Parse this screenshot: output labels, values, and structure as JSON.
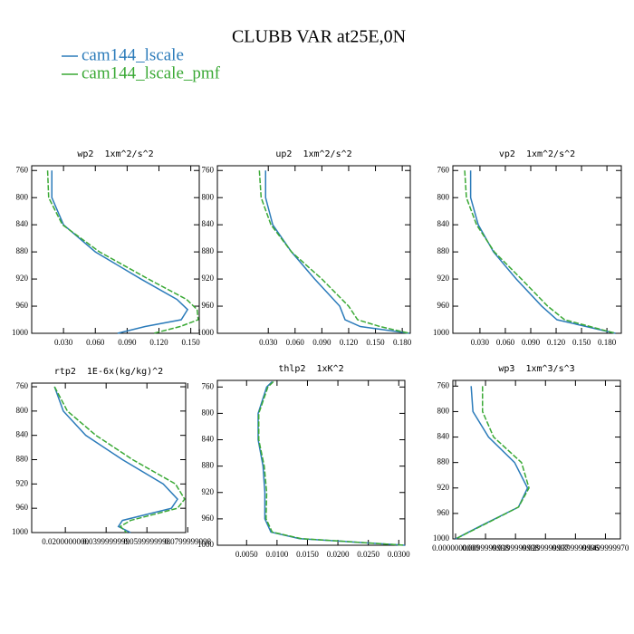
{
  "title": "CLUBB VAR at25E,0N",
  "chart_data": [
    {
      "type": "line",
      "title": "wp2  1xm^2/s^2",
      "y": [
        760,
        800,
        840,
        880,
        920,
        950,
        965,
        980,
        990,
        1000
      ],
      "series": [
        {
          "name": "cam144_lscale",
          "color": "#2b7bba",
          "values": [
            0.019,
            0.019,
            0.03,
            0.06,
            0.103,
            0.137,
            0.147,
            0.141,
            0.107,
            0.081
          ]
        },
        {
          "name": "cam144_lscale_pmf",
          "color": "#3aa935",
          "values": [
            0.015,
            0.016,
            0.029,
            0.064,
            0.11,
            0.146,
            0.156,
            0.157,
            0.14,
            0.115
          ]
        }
      ],
      "xlim": [
        0,
        0.158
      ],
      "xticks": [
        {
          "value": 0.03,
          "label": "0.030"
        },
        {
          "value": 0.06,
          "label": "0.060"
        },
        {
          "value": 0.09,
          "label": "0.090"
        },
        {
          "value": 0.12,
          "label": "0.120"
        },
        {
          "value": 0.15,
          "label": "0.150"
        }
      ],
      "ylim": [
        1000,
        753
      ],
      "yticks": [
        760,
        800,
        840,
        880,
        920,
        960,
        1000
      ]
    },
    {
      "type": "line",
      "title": "up2  1xm^2/s^2",
      "y": [
        760,
        800,
        840,
        880,
        920,
        960,
        980,
        990,
        1000
      ],
      "series": [
        {
          "name": "cam144_lscale",
          "color": "#2b7bba",
          "values": [
            0.027,
            0.027,
            0.035,
            0.056,
            0.082,
            0.11,
            0.116,
            0.133,
            0.188
          ]
        },
        {
          "name": "cam144_lscale_pmf",
          "color": "#3aa935",
          "values": [
            0.02,
            0.022,
            0.033,
            0.056,
            0.09,
            0.12,
            0.13,
            0.155,
            0.188
          ]
        }
      ],
      "xlim": [
        -0.027,
        0.189
      ],
      "xticks": [
        {
          "value": 0.03,
          "label": "0.030"
        },
        {
          "value": 0.06,
          "label": "0.060"
        },
        {
          "value": 0.09,
          "label": "0.090"
        },
        {
          "value": 0.12,
          "label": "0.120"
        },
        {
          "value": 0.15,
          "label": "0.150"
        },
        {
          "value": 0.18,
          "label": "0.180"
        }
      ],
      "ylim": [
        1000,
        753
      ],
      "yticks": [
        760,
        800,
        840,
        880,
        920,
        960,
        1000
      ]
    },
    {
      "type": "line",
      "title": "vp2  1xm^2/s^2",
      "y": [
        760,
        800,
        840,
        880,
        920,
        960,
        980,
        1000
      ],
      "series": [
        {
          "name": "cam144_lscale",
          "color": "#2b7bba",
          "values": [
            0.019,
            0.019,
            0.028,
            0.046,
            0.073,
            0.103,
            0.121,
            0.19
          ]
        },
        {
          "name": "cam144_lscale_pmf",
          "color": "#3aa935",
          "values": [
            0.012,
            0.014,
            0.026,
            0.047,
            0.079,
            0.11,
            0.13,
            0.19
          ]
        }
      ],
      "xlim": [
        -0.002,
        0.197
      ],
      "xticks": [
        {
          "value": 0.03,
          "label": "0.030"
        },
        {
          "value": 0.06,
          "label": "0.060"
        },
        {
          "value": 0.09,
          "label": "0.090"
        },
        {
          "value": 0.12,
          "label": "0.120"
        },
        {
          "value": 0.15,
          "label": "0.150"
        },
        {
          "value": 0.18,
          "label": "0.180"
        }
      ],
      "ylim": [
        1000,
        753
      ],
      "yticks": [
        760,
        800,
        840,
        880,
        920,
        960,
        1000
      ]
    },
    {
      "type": "line",
      "title": "rtp2  1E-6x(kg/kg)^2",
      "y": [
        760,
        800,
        840,
        880,
        920,
        945,
        960,
        980,
        990,
        1000
      ],
      "series": [
        {
          "name": "cam144_lscale",
          "color": "#2b7bba",
          "values": [
            0.0147,
            0.019,
            0.03,
            0.048,
            0.068,
            0.075,
            0.072,
            0.048,
            0.046,
            0.052
          ]
        },
        {
          "name": "cam144_lscale_pmf",
          "color": "#3aa935",
          "values": [
            0.0147,
            0.021,
            0.035,
            0.053,
            0.074,
            0.0785,
            0.075,
            0.052,
            0.047,
            0.05
          ]
        }
      ],
      "xlim": [
        0.0035,
        0.079
      ],
      "xticks": [
        {
          "value": 0.02,
          "label": "0.0200000000"
        },
        {
          "value": 0.04,
          "label": "0.0399999999"
        },
        {
          "value": 0.06,
          "label": "0.0599999998"
        },
        {
          "value": 0.08,
          "label": "0.0799999998"
        }
      ],
      "ylim": [
        1000,
        754
      ],
      "yticks": [
        760,
        800,
        840,
        880,
        920,
        960,
        1000
      ]
    },
    {
      "type": "line",
      "title": "thlp2  1xK^2",
      "y": [
        752,
        760,
        800,
        840,
        880,
        920,
        960,
        980,
        990,
        1000
      ],
      "series": [
        {
          "name": "cam144_lscale",
          "color": "#2b7bba",
          "values": [
            0.0092,
            0.0083,
            0.0069,
            0.0069,
            0.0077,
            0.008,
            0.008,
            0.009,
            0.0137,
            0.031
          ]
        },
        {
          "name": "cam144_lscale_pmf",
          "color": "#3aa935",
          "values": [
            0.0094,
            0.0085,
            0.007,
            0.007,
            0.0079,
            0.0083,
            0.0082,
            0.0092,
            0.014,
            0.031
          ]
        }
      ],
      "xlim": [
        0.0002,
        0.031
      ],
      "xticks": [
        {
          "value": 0.005,
          "label": "0.0050"
        },
        {
          "value": 0.01,
          "label": "0.0100"
        },
        {
          "value": 0.015,
          "label": "0.0150"
        },
        {
          "value": 0.02,
          "label": "0.0200"
        },
        {
          "value": 0.025,
          "label": "0.0250"
        },
        {
          "value": 0.03,
          "label": "0.0300"
        }
      ],
      "ylim": [
        1000,
        750
      ],
      "yticks": [
        760,
        800,
        840,
        880,
        920,
        960,
        1000
      ]
    },
    {
      "type": "line",
      "title": "wp3  1xm^3/s^3",
      "y": [
        760,
        800,
        840,
        880,
        920,
        950,
        980,
        1000
      ],
      "series": [
        {
          "name": "cam144_lscale",
          "color": "#2b7bba",
          "values": [
            0.0052,
            0.0058,
            0.011,
            0.0197,
            0.024,
            0.021,
            0.0082,
            0
          ]
        },
        {
          "name": "cam144_lscale_pmf",
          "color": "#3aa935",
          "values": [
            0.009,
            0.009,
            0.0127,
            0.022,
            0.0245,
            0.021,
            0.0085,
            0
          ]
        }
      ],
      "xlim": [
        -0.0009,
        0.055
      ],
      "xticks": [
        {
          "value": 0,
          "label": "0.0000000000"
        },
        {
          "value": 0.01,
          "label": "0.0099999998"
        },
        {
          "value": 0.02,
          "label": "0.0199999998"
        },
        {
          "value": 0.03,
          "label": "0.0299999997"
        },
        {
          "value": 0.04,
          "label": "0.0399999996"
        },
        {
          "value": 0.05,
          "label": "0.0499999970"
        }
      ],
      "ylim": [
        1000,
        751
      ],
      "yticks": [
        760,
        800,
        840,
        880,
        920,
        960,
        1000
      ]
    }
  ]
}
